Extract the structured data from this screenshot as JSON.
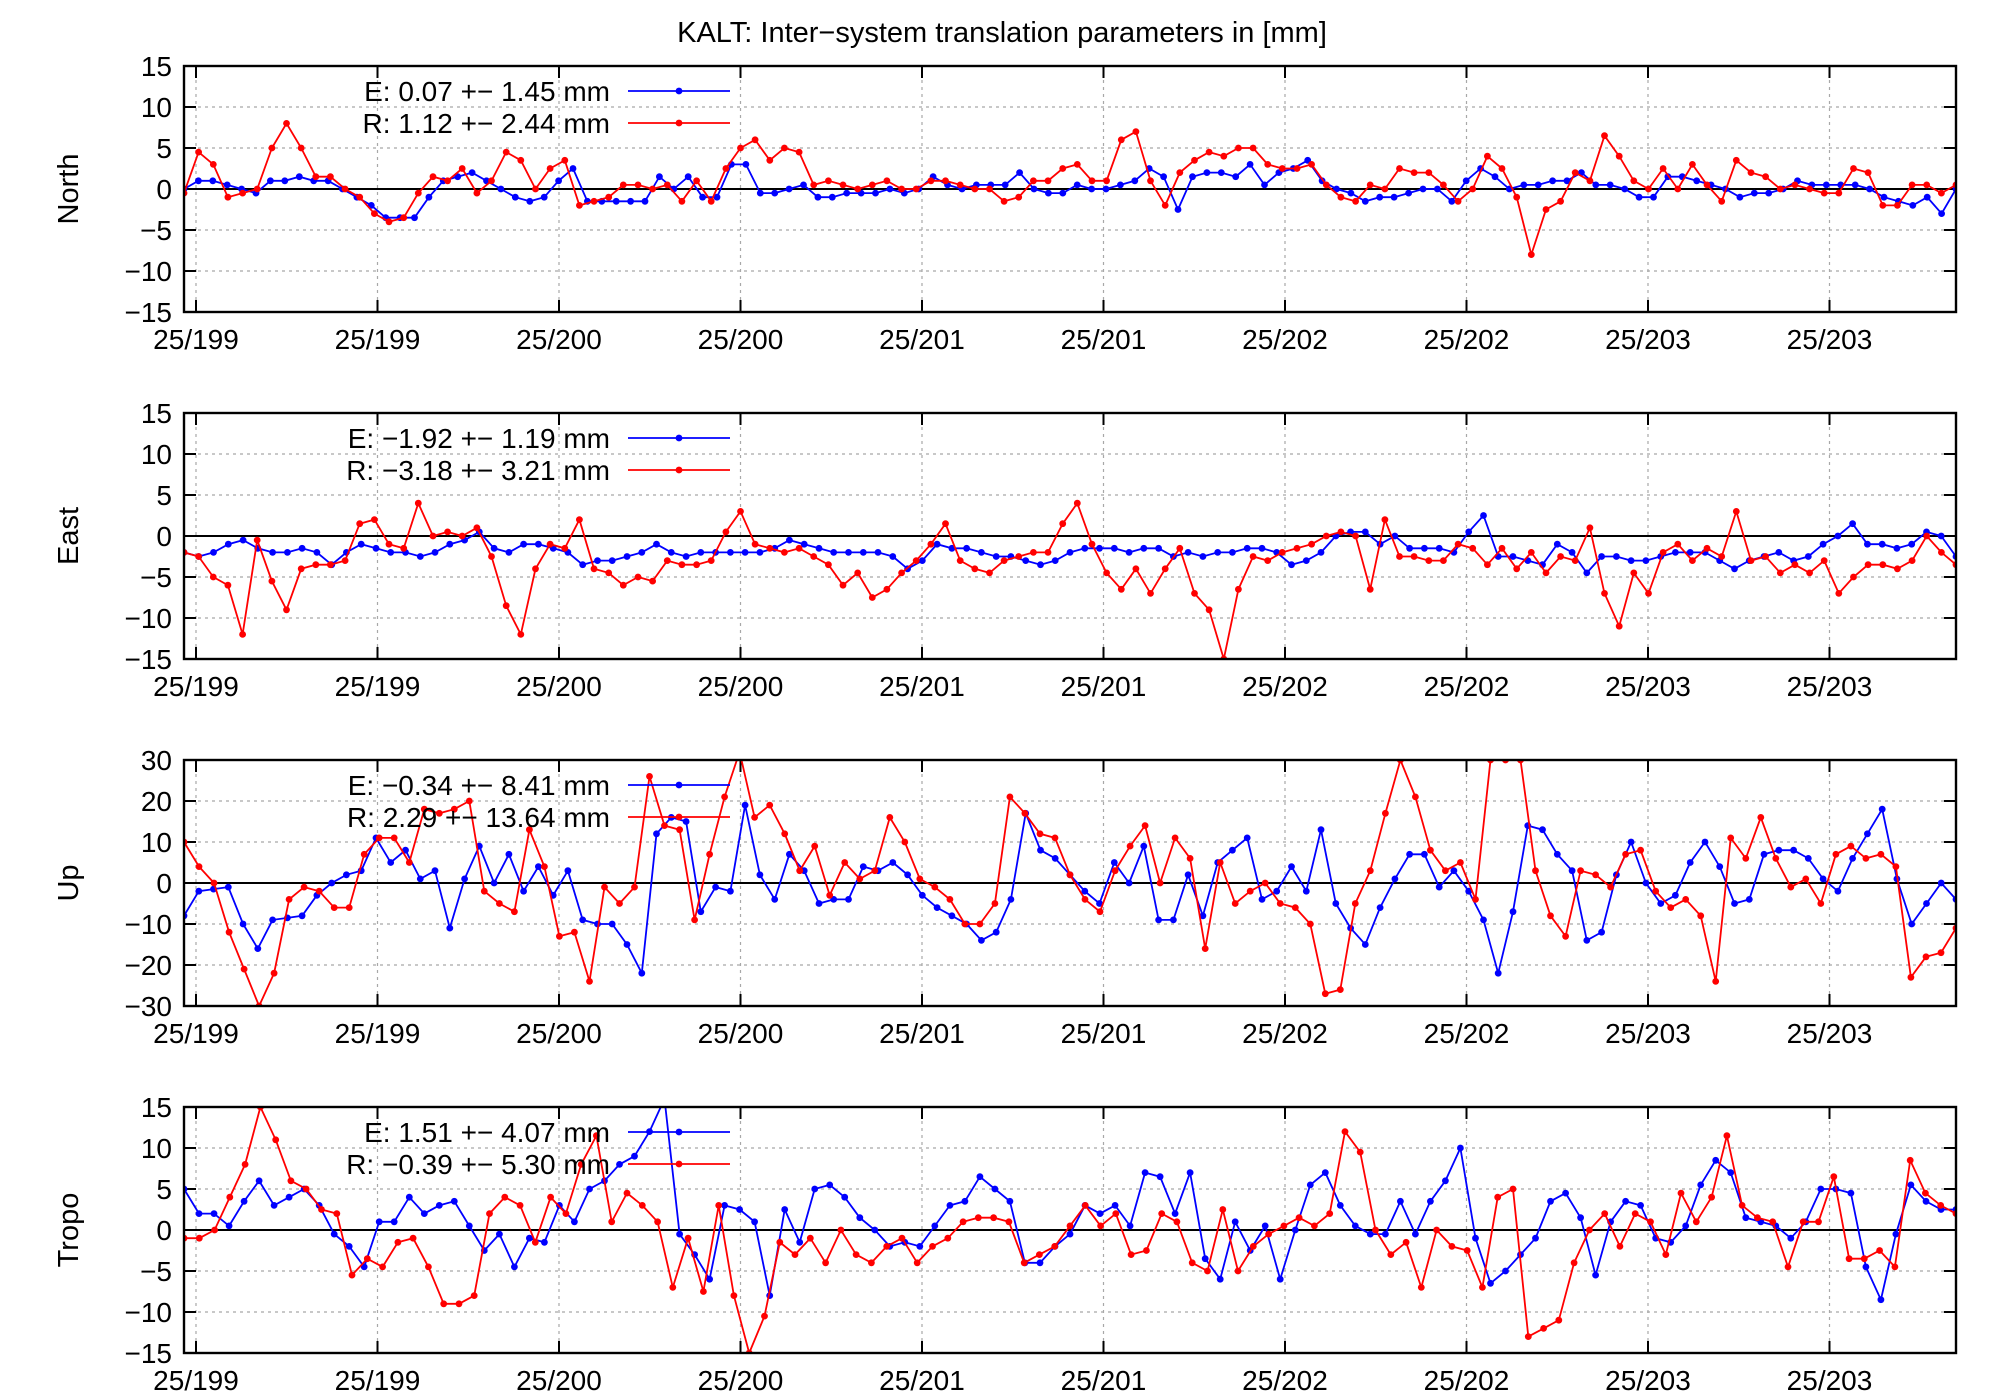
{
  "figure_title": "KALT: Inter−system translation parameters in [mm]",
  "colors": {
    "E": "#0000ff",
    "R": "#ff0000",
    "frame": "#000000",
    "grid": "#a0a0a0"
  },
  "chart_data": [
    {
      "type": "line",
      "ylabel": "North",
      "ylim": [
        -15,
        15
      ],
      "yticks": [
        15,
        10,
        5,
        0,
        -5,
        -10,
        -15
      ],
      "yticklabels": [
        "15",
        "10",
        "5",
        "0",
        "−5",
        "−10",
        "−15"
      ],
      "xticklabels": [
        "25/199",
        "25/199",
        "25/200",
        "25/200",
        "25/201",
        "25/201",
        "25/202",
        "25/202",
        "25/203",
        "25/203"
      ],
      "grid": true,
      "legend_location": "top-left",
      "series": [
        {
          "name": "E:   0.07 +− 1.45 mm",
          "color": "#0000ff",
          "values": [
            0,
            1,
            1,
            0.5,
            0,
            -0.5,
            1,
            1,
            1.5,
            1,
            1,
            0,
            -1,
            -2,
            -3.5,
            -3.5,
            -3.5,
            -1,
            1,
            1.5,
            2,
            1,
            0,
            -1,
            -1.5,
            -1,
            1,
            2.5,
            -1.5,
            -1.5,
            -1.5,
            -1.5,
            -1.5,
            1.5,
            0,
            1.5,
            -1,
            -1,
            3,
            3,
            -0.5,
            -0.5,
            0,
            0.5,
            -1,
            -1,
            -0.5,
            -0.5,
            -0.5,
            0,
            -0.5,
            0,
            1.5,
            0.5,
            0,
            0.5,
            0.5,
            0.5,
            2,
            0,
            -0.5,
            -0.5,
            0.5,
            0,
            0,
            0.5,
            1,
            2.5,
            1.5,
            -2.5,
            1.5,
            2,
            2,
            1.5,
            3,
            0.5,
            2,
            2.5,
            3.5,
            1,
            0,
            -0.5,
            -1.5,
            -1,
            -1,
            -0.5,
            0,
            0,
            -1.5,
            1,
            2.5,
            1.5,
            0,
            0.5,
            0.5,
            1,
            1,
            2,
            0.5,
            0.5,
            0,
            -1,
            -1,
            1.5,
            1.5,
            1,
            0.5,
            0,
            -1,
            -0.5,
            -0.5,
            0,
            1,
            0.5,
            0.5,
            0.5,
            0.5,
            0,
            -1,
            -1.5,
            -2,
            -1,
            -3,
            0
          ]
        },
        {
          "name": "R:   1.12 +− 2.44 mm",
          "color": "#ff0000",
          "values": [
            -0.5,
            4.5,
            3,
            -1,
            -0.5,
            0,
            5,
            8,
            5,
            1.5,
            1.5,
            0,
            -1,
            -3,
            -4,
            -3.5,
            -0.5,
            1.5,
            1,
            2.5,
            -0.5,
            1,
            4.5,
            3.5,
            0,
            2.5,
            3.5,
            -2,
            -1.5,
            -1,
            0.5,
            0.5,
            0,
            0.5,
            -1.5,
            1,
            -1.5,
            2.5,
            5,
            6,
            3.5,
            5,
            4.5,
            0.5,
            1,
            0.5,
            0,
            0.5,
            1,
            0,
            0,
            1,
            1,
            0.5,
            0,
            0,
            -1.5,
            -1,
            1,
            1,
            2.5,
            3,
            1,
            1,
            6,
            7,
            1,
            -2,
            2,
            3.5,
            4.5,
            4,
            5,
            5,
            3,
            2.5,
            2.5,
            3,
            0.5,
            -1,
            -1.5,
            0.5,
            0,
            2.5,
            2,
            2,
            0.5,
            -1.5,
            0,
            4,
            2.5,
            -1,
            -8,
            -2.5,
            -1.5,
            2,
            1,
            6.5,
            4,
            1,
            0,
            2.5,
            0,
            3,
            0.5,
            -1.5,
            3.5,
            2,
            1.5,
            0,
            0.5,
            0,
            -0.5,
            -0.5,
            2.5,
            2,
            -2,
            -2,
            0.5,
            0.5,
            -0.5,
            0.5
          ]
        }
      ]
    },
    {
      "type": "line",
      "ylabel": "East",
      "ylim": [
        -15,
        15
      ],
      "yticks": [
        15,
        10,
        5,
        0,
        -5,
        -10,
        -15
      ],
      "yticklabels": [
        "15",
        "10",
        "5",
        "0",
        "−5",
        "−10",
        "−15"
      ],
      "xticklabels": [
        "25/199",
        "25/199",
        "25/200",
        "25/200",
        "25/201",
        "25/201",
        "25/202",
        "25/202",
        "25/203",
        "25/203"
      ],
      "grid": true,
      "legend_location": "top-left",
      "series": [
        {
          "name": "E:  −1.92 +− 1.19 mm",
          "color": "#0000ff",
          "values": [
            -2,
            -2.5,
            -2,
            -1,
            -0.5,
            -1.5,
            -2,
            -2,
            -1.5,
            -2,
            -3.5,
            -2,
            -1,
            -1.5,
            -2,
            -2,
            -2.5,
            -2,
            -1,
            -0.5,
            0.5,
            -1.5,
            -2,
            -1,
            -1,
            -1.5,
            -2,
            -3.5,
            -3,
            -3,
            -2.5,
            -2,
            -1,
            -2,
            -2.5,
            -2,
            -2,
            -2,
            -2,
            -2,
            -1.5,
            -0.5,
            -1,
            -1.5,
            -2,
            -2,
            -2,
            -2,
            -2.5,
            -4,
            -3,
            -1,
            -1.5,
            -1.5,
            -2,
            -2.5,
            -2.5,
            -3,
            -3.5,
            -3,
            -2,
            -1.5,
            -1.5,
            -1.5,
            -2,
            -1.5,
            -1.5,
            -2.5,
            -2,
            -2.5,
            -2,
            -2,
            -1.5,
            -1.5,
            -2,
            -3.5,
            -3,
            -2,
            0,
            0.5,
            0.5,
            -1,
            0,
            -1.5,
            -1.5,
            -1.5,
            -2,
            0.5,
            2.5,
            -2.5,
            -2.5,
            -3,
            -3.5,
            -1,
            -2,
            -4.5,
            -2.5,
            -2.5,
            -3,
            -3,
            -2.5,
            -2,
            -2,
            -2,
            -3,
            -4,
            -3,
            -2.5,
            -2,
            -3,
            -2.5,
            -1,
            0,
            1.5,
            -1,
            -1,
            -1.5,
            -1,
            0.5,
            0,
            -2.5
          ]
        },
        {
          "name": "R:  −3.18 +− 3.21 mm",
          "color": "#ff0000",
          "values": [
            -2,
            -2.5,
            -5,
            -6,
            -12,
            -0.5,
            -5.5,
            -9,
            -4,
            -3.5,
            -3.5,
            -3,
            1.5,
            2,
            -1,
            -1.5,
            4,
            0,
            0.5,
            0,
            1,
            -2.5,
            -8.5,
            -12,
            -4,
            -1,
            -1.5,
            2,
            -4,
            -4.5,
            -6,
            -5,
            -5.5,
            -3,
            -3.5,
            -3.5,
            -3,
            0.5,
            3,
            -1,
            -1.5,
            -2,
            -1.5,
            -2.5,
            -3.5,
            -6,
            -4.5,
            -7.5,
            -6.5,
            -4.5,
            -3,
            -1,
            1.5,
            -3,
            -4,
            -4.5,
            -3,
            -2.5,
            -2,
            -2,
            1.5,
            4,
            -1,
            -4.5,
            -6.5,
            -4,
            -7,
            -4,
            -1.5,
            -7,
            -9,
            -15,
            -6.5,
            -2.5,
            -3,
            -2,
            -1.5,
            -1,
            0,
            0.5,
            0,
            -6.5,
            2,
            -2.5,
            -2.5,
            -3,
            -3,
            -1,
            -1.5,
            -3.5,
            -1.5,
            -4,
            -2,
            -4.5,
            -2.5,
            -3,
            1,
            -7,
            -11,
            -4.5,
            -7,
            -2,
            -1,
            -3,
            -1.5,
            -2.5,
            3,
            -3,
            -2.5,
            -4.5,
            -3.5,
            -4.5,
            -3,
            -7,
            -5,
            -3.5,
            -3.5,
            -4,
            -3,
            0,
            -2,
            -3.5
          ]
        }
      ]
    },
    {
      "type": "line",
      "ylabel": "Up",
      "ylim": [
        -30,
        30
      ],
      "yticks": [
        30,
        20,
        10,
        0,
        -10,
        -20,
        -30
      ],
      "yticklabels": [
        "30",
        "20",
        "10",
        "0",
        "−10",
        "−20",
        "−30"
      ],
      "xticklabels": [
        "25/199",
        "25/199",
        "25/200",
        "25/200",
        "25/201",
        "25/201",
        "25/202",
        "25/202",
        "25/203",
        "25/203"
      ],
      "grid": true,
      "legend_location": "top-left",
      "series": [
        {
          "name": "E:  −0.34 +− 8.41 mm",
          "color": "#0000ff",
          "values": [
            -8,
            -2,
            -1.5,
            -1,
            -10,
            -16,
            -9,
            -8.5,
            -8,
            -3,
            0,
            2,
            3,
            11,
            5,
            8,
            1,
            3,
            -11,
            1,
            9,
            0,
            7,
            -2,
            4,
            -3,
            3,
            -9,
            -10,
            -10,
            -15,
            -22,
            12,
            16,
            15,
            -7,
            -1,
            -2,
            19,
            2,
            -4,
            7,
            3,
            -5,
            -4,
            -4,
            4,
            3,
            5,
            2,
            -3,
            -6,
            -8,
            -10,
            -14,
            -12,
            -4,
            17,
            8,
            6,
            2,
            -2,
            -5,
            5,
            0,
            9,
            -9,
            -9,
            2,
            -8,
            5,
            8,
            11,
            -4,
            -2,
            4,
            -2,
            13,
            -5,
            -11,
            -15,
            -6,
            1,
            7,
            7,
            -1,
            3,
            -2,
            -9,
            -22,
            -7,
            14,
            13,
            7,
            3,
            -14,
            -12,
            2,
            10,
            0,
            -5,
            -3,
            5,
            10,
            4,
            -5,
            -4,
            7,
            8,
            8,
            6,
            1,
            -2,
            6,
            12,
            18,
            1,
            -10,
            -5,
            0,
            -4
          ]
        },
        {
          "name": "R:   2.29 +− 13.64 mm",
          "color": "#ff0000",
          "values": [
            10,
            4,
            0,
            -12,
            -21,
            -30,
            -22,
            -4,
            -1,
            -2,
            -6,
            -6,
            7,
            11,
            11,
            5,
            18,
            17,
            18,
            20,
            -2,
            -5,
            -7,
            13,
            4,
            -13,
            -12,
            -24,
            -1,
            -5,
            -1,
            26,
            14,
            13,
            -9,
            7,
            21,
            32,
            16,
            19,
            12,
            3,
            9,
            -3,
            5,
            1,
            3,
            16,
            10,
            1,
            -1,
            -4,
            -10,
            -10,
            -5,
            21,
            17,
            12,
            11,
            2,
            -4,
            -7,
            3,
            9,
            14,
            0,
            11,
            6,
            -16,
            5,
            -5,
            -2,
            0,
            -5,
            -6,
            -10,
            -27,
            -26,
            -5,
            3,
            17,
            30,
            21,
            8,
            3,
            5,
            -4,
            30,
            30,
            30,
            3,
            -8,
            -13,
            3,
            2,
            -1,
            7,
            8,
            -2,
            -6,
            -4,
            -8,
            -24,
            11,
            6,
            16,
            6,
            -1,
            1,
            -5,
            7,
            9,
            6,
            7,
            4,
            -23,
            -18,
            -17,
            -11
          ]
        }
      ]
    },
    {
      "type": "line",
      "ylabel": "Tropo",
      "ylim": [
        -15,
        15
      ],
      "yticks": [
        15,
        10,
        5,
        0,
        -5,
        -10,
        -15
      ],
      "yticklabels": [
        "15",
        "10",
        "5",
        "0",
        "−5",
        "−10",
        "−15"
      ],
      "xticklabels": [
        "25/199",
        "25/199",
        "25/200",
        "25/200",
        "25/201",
        "25/201",
        "25/202",
        "25/202",
        "25/203",
        "25/203"
      ],
      "grid": true,
      "legend_location": "top-left",
      "series": [
        {
          "name": "E:   1.51 +− 4.07 mm",
          "color": "#0000ff",
          "values": [
            5,
            2,
            2,
            0.5,
            3.5,
            6,
            3,
            4,
            5,
            3,
            -0.5,
            -2,
            -4.5,
            1,
            1,
            4,
            2,
            3,
            3.5,
            0.5,
            -2.5,
            -0.5,
            -4.5,
            -1,
            -1.5,
            3,
            1,
            5,
            6,
            8,
            9,
            12,
            16,
            -0.5,
            -3,
            -6,
            3,
            2.5,
            1,
            -8,
            2.5,
            -1.5,
            5,
            5.5,
            4,
            1.5,
            0,
            -2,
            -1.5,
            -2,
            0.5,
            3,
            3.5,
            6.5,
            5,
            3.5,
            -4,
            -4,
            -2,
            -0.5,
            3,
            2,
            3,
            0.5,
            7,
            6.5,
            2,
            7,
            -3.5,
            -6,
            1,
            -2.5,
            0.5,
            -6,
            0,
            5.5,
            7,
            3,
            0.5,
            -0.5,
            -0.5,
            3.5,
            -0.5,
            3.5,
            6,
            10,
            -1,
            -6.5,
            -5,
            -3,
            -1,
            3.5,
            4.5,
            1.5,
            -5.5,
            1,
            3.5,
            3,
            -1,
            -1.5,
            0.5,
            5.5,
            8.5,
            7,
            1.5,
            1,
            0.5,
            -1,
            1,
            5,
            5,
            4.5,
            -4.5,
            -8.5,
            -0.5,
            5.5,
            3.5,
            2.5,
            2.5
          ]
        },
        {
          "name": "R:  −0.39 +− 5.30 mm",
          "color": "#ff0000",
          "values": [
            -1,
            -1,
            0,
            4,
            8,
            15,
            11,
            6,
            5,
            2.5,
            2,
            -5.5,
            -3.5,
            -4.5,
            -1.5,
            -1,
            -4.5,
            -9,
            -9,
            -8,
            2,
            4,
            3,
            -1.5,
            4,
            2,
            8,
            11.5,
            1,
            4.5,
            3,
            1,
            -7,
            -1,
            -7.5,
            3,
            -8,
            -15,
            -10.5,
            -1.5,
            -3,
            -1,
            -4,
            0,
            -3,
            -4,
            -2,
            -1,
            -4,
            -2,
            -1,
            1,
            1.5,
            1.5,
            1,
            -4,
            -3,
            -2,
            0.5,
            3,
            0.5,
            2,
            -3,
            -2.5,
            2,
            1,
            -4,
            -5,
            2.5,
            -5,
            -2,
            -0.5,
            0.5,
            1.5,
            0.5,
            2,
            12,
            9.5,
            0,
            -3,
            -1.5,
            -7,
            0,
            -2,
            -2.5,
            -7,
            4,
            5,
            -13,
            -12,
            -11,
            -4,
            0,
            2,
            -2,
            2,
            1,
            -3,
            4.5,
            1,
            4,
            11.5,
            3,
            1.5,
            1,
            -4.5,
            1,
            1,
            6.5,
            -3.5,
            -3.5,
            -2.5,
            -4.5,
            8.5,
            4.5,
            3,
            2
          ]
        }
      ]
    }
  ]
}
